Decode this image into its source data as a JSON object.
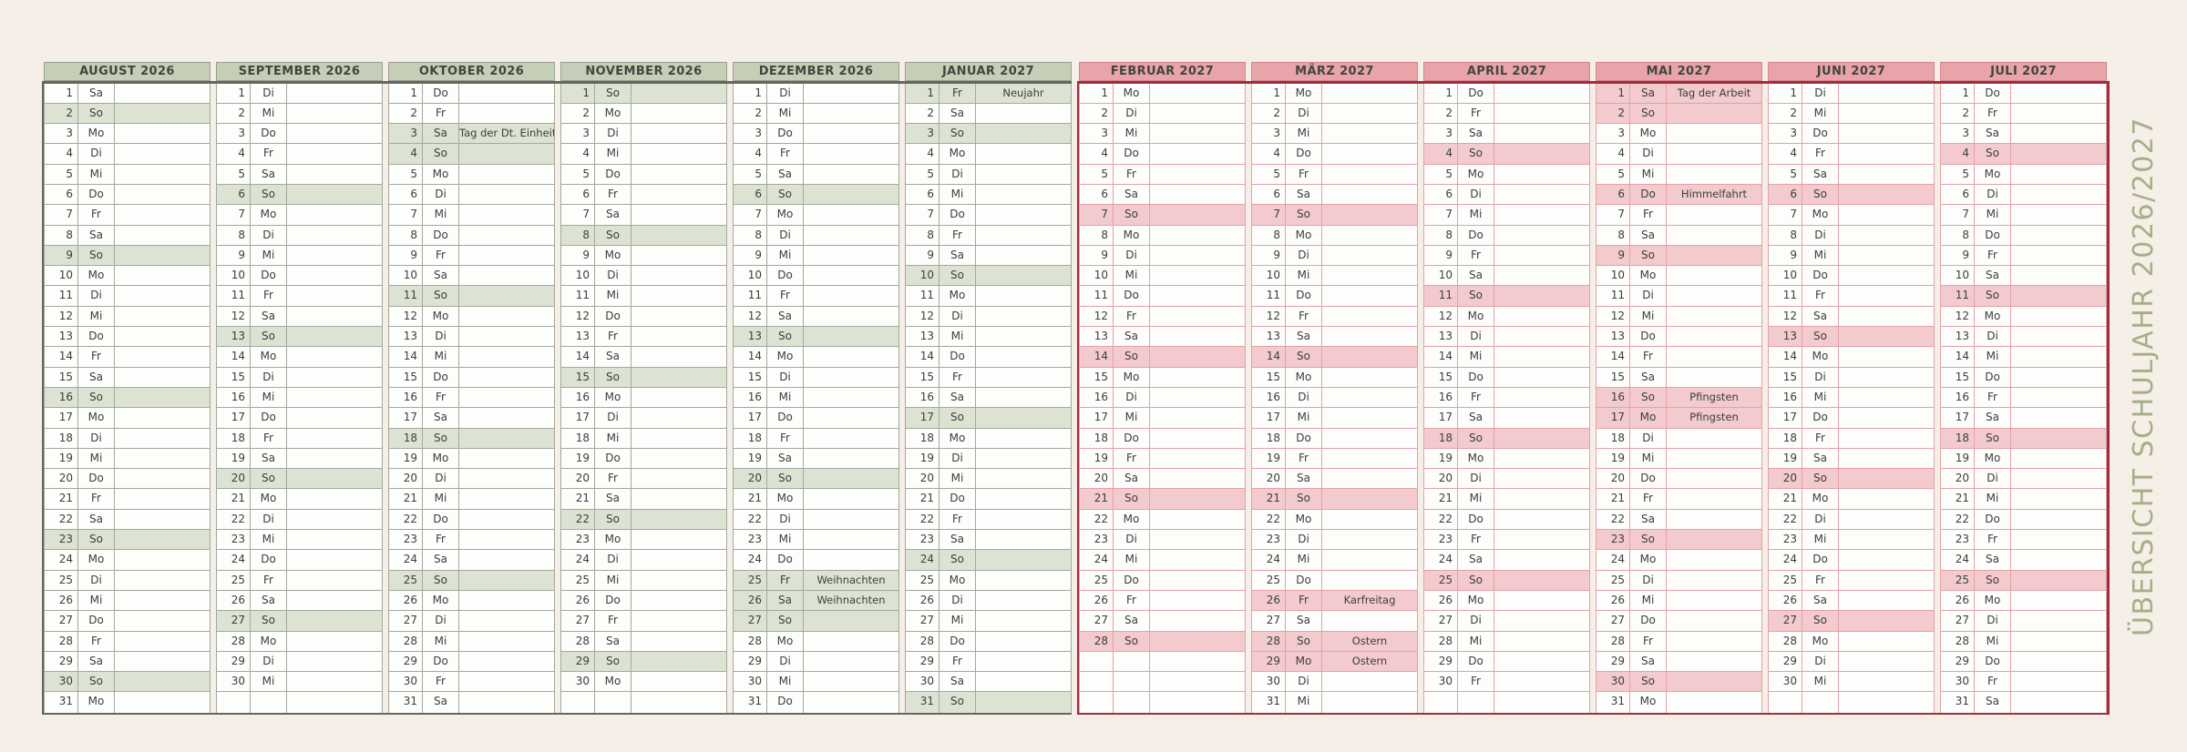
{
  "page": {
    "vertical_title": "ÜBERSICHT SCHULJAHR 2026/2027"
  },
  "colors": {
    "page_background": "#f5efe7",
    "green_header": "#c5cfb7",
    "green_highlight": "#dde3d3",
    "green_grid": "#a3a99d",
    "green_heavy": "#63685f",
    "pink_header": "#e8a4a9",
    "pink_highlight": "#f3cacd",
    "pink_grid": "#e2a2a8",
    "pink_heavy": "#9e2e3f",
    "cell_background": "#fdfdfb",
    "text": "#3a3f3d",
    "title_green": "#a5af87"
  },
  "months": [
    {
      "title": "AUGUST 2026",
      "theme": "green",
      "weekdays": [
        "Sa",
        "So",
        "Mo",
        "Di",
        "Mi",
        "Do",
        "Fr",
        "Sa",
        "So",
        "Mo",
        "Di",
        "Mi",
        "Do",
        "Fr",
        "Sa",
        "So",
        "Mo",
        "Di",
        "Mi",
        "Do",
        "Fr",
        "Sa",
        "So",
        "Mo",
        "Di",
        "Mi",
        "Do",
        "Fr",
        "Sa",
        "So",
        "Mo"
      ],
      "notes": {}
    },
    {
      "title": "SEPTEMBER 2026",
      "theme": "green",
      "weekdays": [
        "Di",
        "Mi",
        "Do",
        "Fr",
        "Sa",
        "So",
        "Mo",
        "Di",
        "Mi",
        "Do",
        "Fr",
        "Sa",
        "So",
        "Mo",
        "Di",
        "Mi",
        "Do",
        "Fr",
        "Sa",
        "So",
        "Mo",
        "Di",
        "Mi",
        "Do",
        "Fr",
        "Sa",
        "So",
        "Mo",
        "Di",
        "Mi"
      ],
      "notes": {}
    },
    {
      "title": "OKTOBER 2026",
      "theme": "green",
      "weekdays": [
        "Do",
        "Fr",
        "Sa",
        "So",
        "Mo",
        "Di",
        "Mi",
        "Do",
        "Fr",
        "Sa",
        "So",
        "Mo",
        "Di",
        "Mi",
        "Do",
        "Fr",
        "Sa",
        "So",
        "Mo",
        "Di",
        "Mi",
        "Do",
        "Fr",
        "Sa",
        "So",
        "Mo",
        "Di",
        "Mi",
        "Do",
        "Fr",
        "Sa"
      ],
      "notes": {
        "3": "Tag der Dt. Einheit"
      }
    },
    {
      "title": "NOVEMBER 2026",
      "theme": "green",
      "weekdays": [
        "So",
        "Mo",
        "Di",
        "Mi",
        "Do",
        "Fr",
        "Sa",
        "So",
        "Mo",
        "Di",
        "Mi",
        "Do",
        "Fr",
        "Sa",
        "So",
        "Mo",
        "Di",
        "Mi",
        "Do",
        "Fr",
        "Sa",
        "So",
        "Mo",
        "Di",
        "Mi",
        "Do",
        "Fr",
        "Sa",
        "So",
        "Mo"
      ],
      "notes": {}
    },
    {
      "title": "DEZEMBER 2026",
      "theme": "green",
      "weekdays": [
        "Di",
        "Mi",
        "Do",
        "Fr",
        "Sa",
        "So",
        "Mo",
        "Di",
        "Mi",
        "Do",
        "Fr",
        "Sa",
        "So",
        "Mo",
        "Di",
        "Mi",
        "Do",
        "Fr",
        "Sa",
        "So",
        "Mo",
        "Di",
        "Mi",
        "Do",
        "Fr",
        "Sa",
        "So",
        "Mo",
        "Di",
        "Mi",
        "Do"
      ],
      "notes": {
        "25": "Weihnachten",
        "26": "Weihnachten"
      }
    },
    {
      "title": "JANUAR 2027",
      "theme": "green",
      "weekdays": [
        "Fr",
        "Sa",
        "So",
        "Mo",
        "Di",
        "Mi",
        "Do",
        "Fr",
        "Sa",
        "So",
        "Mo",
        "Di",
        "Mi",
        "Do",
        "Fr",
        "Sa",
        "So",
        "Mo",
        "Di",
        "Mi",
        "Do",
        "Fr",
        "Sa",
        "So",
        "Mo",
        "Di",
        "Mi",
        "Do",
        "Fr",
        "Sa",
        "So"
      ],
      "notes": {
        "1": "Neujahr"
      }
    },
    {
      "title": "FEBRUAR 2027",
      "theme": "pink",
      "weekdays": [
        "Mo",
        "Di",
        "Mi",
        "Do",
        "Fr",
        "Sa",
        "So",
        "Mo",
        "Di",
        "Mi",
        "Do",
        "Fr",
        "Sa",
        "So",
        "Mo",
        "Di",
        "Mi",
        "Do",
        "Fr",
        "Sa",
        "So",
        "Mo",
        "Di",
        "Mi",
        "Do",
        "Fr",
        "Sa",
        "So"
      ],
      "notes": {}
    },
    {
      "title": "MÄRZ 2027",
      "theme": "pink",
      "weekdays": [
        "Mo",
        "Di",
        "Mi",
        "Do",
        "Fr",
        "Sa",
        "So",
        "Mo",
        "Di",
        "Mi",
        "Do",
        "Fr",
        "Sa",
        "So",
        "Mo",
        "Di",
        "Mi",
        "Do",
        "Fr",
        "Sa",
        "So",
        "Mo",
        "Di",
        "Mi",
        "Do",
        "Fr",
        "Sa",
        "So",
        "Mo",
        "Di",
        "Mi"
      ],
      "notes": {
        "26": "Karfreitag",
        "28": "Ostern",
        "29": "Ostern"
      }
    },
    {
      "title": "APRIL 2027",
      "theme": "pink",
      "weekdays": [
        "Do",
        "Fr",
        "Sa",
        "So",
        "Mo",
        "Di",
        "Mi",
        "Do",
        "Fr",
        "Sa",
        "So",
        "Mo",
        "Di",
        "Mi",
        "Do",
        "Fr",
        "Sa",
        "So",
        "Mo",
        "Di",
        "Mi",
        "Do",
        "Fr",
        "Sa",
        "So",
        "Mo",
        "Di",
        "Mi",
        "Do",
        "Fr"
      ],
      "notes": {}
    },
    {
      "title": "MAI 2027",
      "theme": "pink",
      "weekdays": [
        "Sa",
        "So",
        "Mo",
        "Di",
        "Mi",
        "Do",
        "Fr",
        "Sa",
        "So",
        "Mo",
        "Di",
        "Mi",
        "Do",
        "Fr",
        "Sa",
        "So",
        "Mo",
        "Di",
        "Mi",
        "Do",
        "Fr",
        "Sa",
        "So",
        "Mo",
        "Di",
        "Mi",
        "Do",
        "Fr",
        "Sa",
        "So",
        "Mo"
      ],
      "notes": {
        "1": "Tag der Arbeit",
        "6": "Himmelfahrt",
        "16": "Pfingsten",
        "17": "Pfingsten"
      }
    },
    {
      "title": "JUNI 2027",
      "theme": "pink",
      "weekdays": [
        "Di",
        "Mi",
        "Do",
        "Fr",
        "Sa",
        "So",
        "Mo",
        "Di",
        "Mi",
        "Do",
        "Fr",
        "Sa",
        "So",
        "Mo",
        "Di",
        "Mi",
        "Do",
        "Fr",
        "Sa",
        "So",
        "Mo",
        "Di",
        "Mi",
        "Do",
        "Fr",
        "Sa",
        "So",
        "Mo",
        "Di",
        "Mi"
      ],
      "notes": {}
    },
    {
      "title": "JULI 2027",
      "theme": "pink",
      "weekdays": [
        "Do",
        "Fr",
        "Sa",
        "So",
        "Mo",
        "Di",
        "Mi",
        "Do",
        "Fr",
        "Sa",
        "So",
        "Mo",
        "Di",
        "Mi",
        "Do",
        "Fr",
        "Sa",
        "So",
        "Mo",
        "Di",
        "Mi",
        "Do",
        "Fr",
        "Sa",
        "So",
        "Mo",
        "Di",
        "Mi",
        "Do",
        "Fr",
        "Sa"
      ],
      "notes": {}
    }
  ]
}
